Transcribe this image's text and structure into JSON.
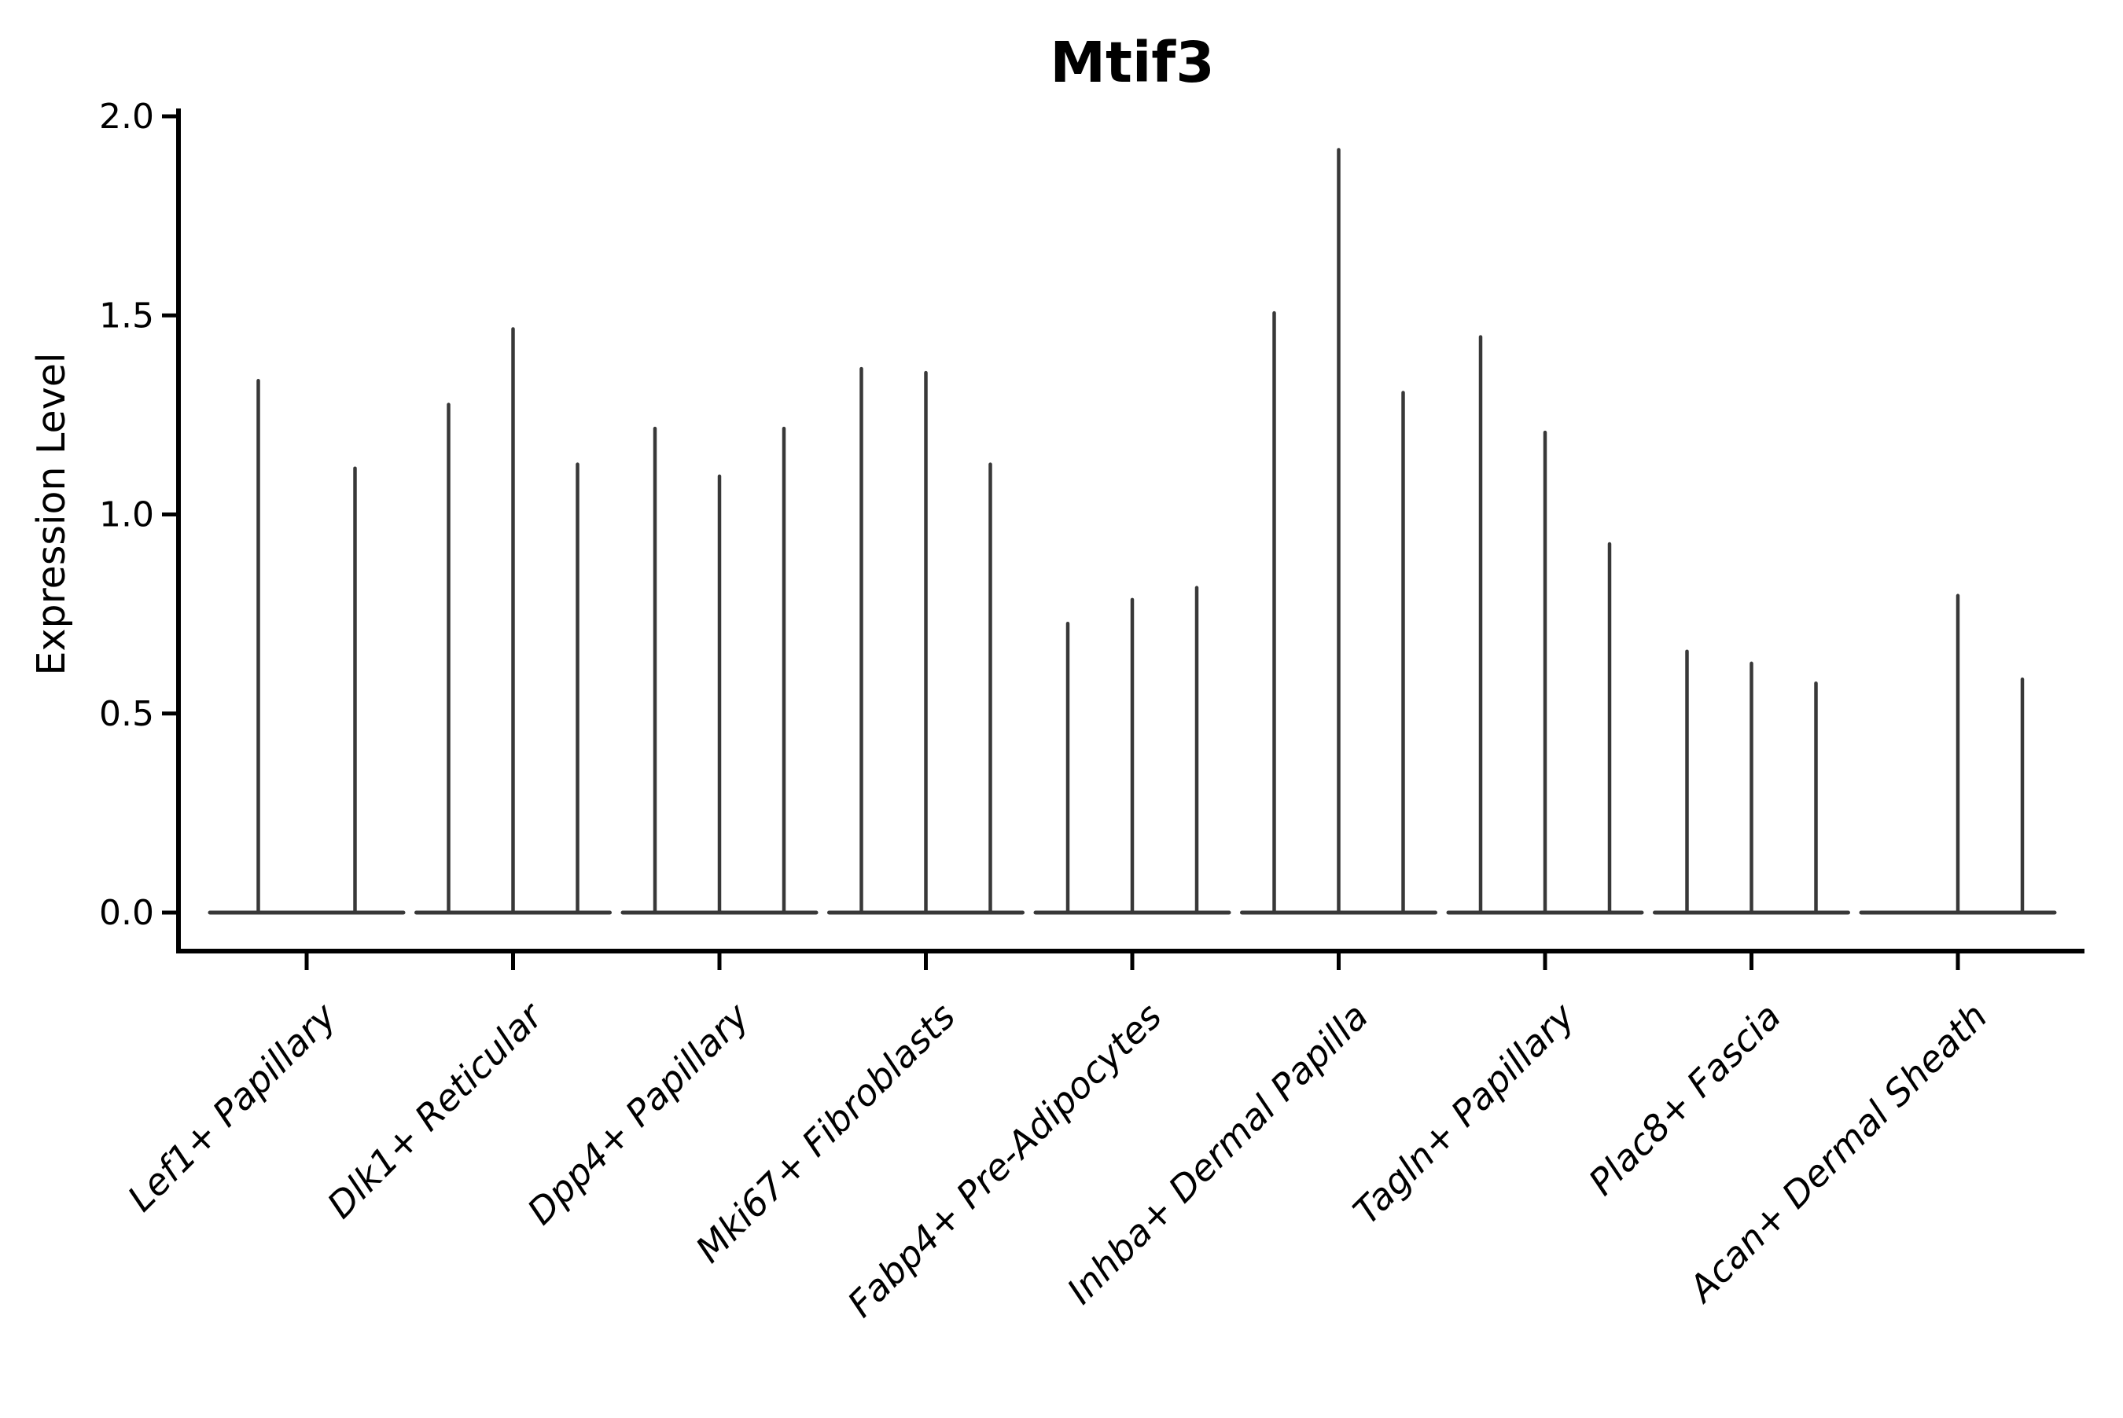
{
  "chart_data": {
    "type": "violin",
    "title": "Mtif3",
    "xlabel": "",
    "ylabel": "Expression Level",
    "ytick_labels": [
      "0.0",
      "0.5",
      "1.0",
      "1.5",
      "2.0"
    ],
    "ytick_values": [
      0.0,
      0.5,
      1.0,
      1.5,
      2.0
    ],
    "ylim": [
      -0.1,
      2.02
    ],
    "grid": false,
    "legend": "none",
    "categories": [
      "Lef1+ Papillary",
      "Dlk1+ Reticular",
      "Dpp4+ Papillary",
      "Mki67+ Fibroblasts",
      "Fabp4+ Pre-Adipocytes",
      "Inhba+ Dermal Papilla",
      "Tagln+ Papillary",
      "Plac8+ Fascia",
      "Acan+ Dermal Sheath"
    ],
    "groups": [
      {
        "label": "Lef1+ Papillary",
        "violin_peaks": [
          1.34,
          1.12
        ]
      },
      {
        "label": "Dlk1+ Reticular",
        "violin_peaks": [
          1.28,
          1.47,
          1.13
        ]
      },
      {
        "label": "Dpp4+ Papillary",
        "violin_peaks": [
          1.22,
          1.1,
          1.22
        ]
      },
      {
        "label": "Mki67+ Fibroblasts",
        "violin_peaks": [
          1.37,
          1.36,
          1.13
        ]
      },
      {
        "label": "Fabp4+ Pre-Adipocytes",
        "violin_peaks": [
          0.73,
          0.79,
          0.82
        ]
      },
      {
        "label": "Inhba+ Dermal Papilla",
        "violin_peaks": [
          1.51,
          1.92,
          1.31
        ]
      },
      {
        "label": "Tagln+ Papillary",
        "violin_peaks": [
          1.45,
          1.21,
          0.93
        ]
      },
      {
        "label": "Plac8+ Fascia",
        "violin_peaks": [
          0.66,
          0.63,
          0.58
        ]
      },
      {
        "label": "Acan+ Dermal Sheath",
        "violin_peaks": [
          null,
          0.8,
          0.59
        ]
      }
    ],
    "violin_peaks_note": "max expression value reached by each thin violin spike; null = violin entirely at 0 (flat baseline only)",
    "colors": {
      "violin": "#383838",
      "axis": "#000000",
      "background": "#ffffff"
    }
  }
}
